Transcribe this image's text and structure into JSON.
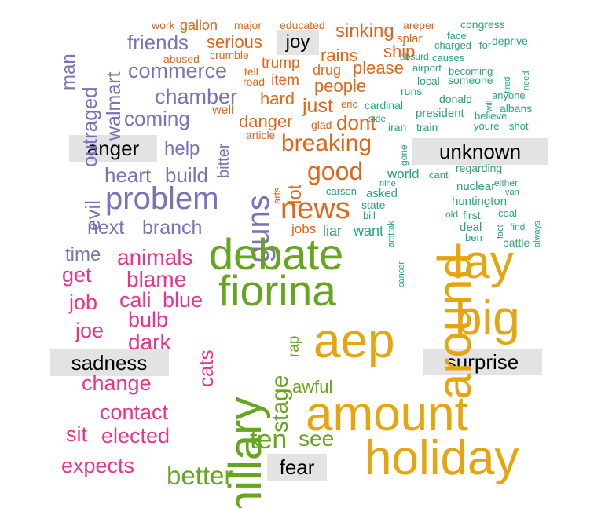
{
  "chart_data": {
    "type": "comparison-wordcloud",
    "groups": [
      {
        "name": "joy",
        "color": "#e0661a"
      },
      {
        "name": "anger",
        "color": "#7b72b8"
      },
      {
        "name": "unknown",
        "color": "#2aa57a"
      },
      {
        "name": "sadness",
        "color": "#e8358b"
      },
      {
        "name": "fear",
        "color": "#66a61e"
      },
      {
        "name": "surprise",
        "color": "#e6a50c"
      }
    ],
    "words": [
      {
        "text": "joy",
        "group": "joy"
      },
      {
        "text": "work",
        "group": "joy"
      },
      {
        "text": "gallon",
        "group": "joy"
      },
      {
        "text": "major",
        "group": "joy"
      },
      {
        "text": "educated",
        "group": "joy"
      },
      {
        "text": "sinking",
        "group": "joy"
      },
      {
        "text": "serious",
        "group": "joy"
      },
      {
        "text": "abused",
        "group": "joy"
      },
      {
        "text": "crumble",
        "group": "joy"
      },
      {
        "text": "trump",
        "group": "joy"
      },
      {
        "text": "tell",
        "group": "joy"
      },
      {
        "text": "road",
        "group": "joy"
      },
      {
        "text": "item",
        "group": "joy"
      },
      {
        "text": "drug",
        "group": "joy"
      },
      {
        "text": "rains",
        "group": "joy"
      },
      {
        "text": "please",
        "group": "joy"
      },
      {
        "text": "ship",
        "group": "joy"
      },
      {
        "text": "splar",
        "group": "joy"
      },
      {
        "text": "areper",
        "group": "joy"
      },
      {
        "text": "people",
        "group": "joy"
      },
      {
        "text": "hard",
        "group": "joy"
      },
      {
        "text": "just",
        "group": "joy"
      },
      {
        "text": "eric",
        "group": "joy"
      },
      {
        "text": "well",
        "group": "joy"
      },
      {
        "text": "danger",
        "group": "joy"
      },
      {
        "text": "glad",
        "group": "joy"
      },
      {
        "text": "dont",
        "group": "joy"
      },
      {
        "text": "article",
        "group": "joy"
      },
      {
        "text": "breaking",
        "group": "joy"
      },
      {
        "text": "good",
        "group": "joy"
      },
      {
        "text": "arts",
        "group": "joy"
      },
      {
        "text": "lot",
        "group": "joy"
      },
      {
        "text": "news",
        "group": "joy"
      },
      {
        "text": "jobs",
        "group": "joy"
      },
      {
        "text": "anger",
        "group": "anger"
      },
      {
        "text": "man",
        "group": "anger"
      },
      {
        "text": "outraged",
        "group": "anger"
      },
      {
        "text": "walmart",
        "group": "anger"
      },
      {
        "text": "friends",
        "group": "anger"
      },
      {
        "text": "commerce",
        "group": "anger"
      },
      {
        "text": "chamber",
        "group": "anger"
      },
      {
        "text": "coming",
        "group": "anger"
      },
      {
        "text": "bitter",
        "group": "anger"
      },
      {
        "text": "help",
        "group": "anger"
      },
      {
        "text": "heart",
        "group": "anger"
      },
      {
        "text": "build",
        "group": "anger"
      },
      {
        "text": "evil",
        "group": "anger"
      },
      {
        "text": "problem",
        "group": "anger"
      },
      {
        "text": "guns",
        "group": "anger"
      },
      {
        "text": "next",
        "group": "anger"
      },
      {
        "text": "branch",
        "group": "anger"
      },
      {
        "text": "unknown",
        "group": "unknown"
      },
      {
        "text": "congress",
        "group": "unknown"
      },
      {
        "text": "face",
        "group": "unknown"
      },
      {
        "text": "charged",
        "group": "unknown"
      },
      {
        "text": "for",
        "group": "unknown"
      },
      {
        "text": "deprive",
        "group": "unknown"
      },
      {
        "text": "absurd",
        "group": "unknown"
      },
      {
        "text": "causes",
        "group": "unknown"
      },
      {
        "text": "airport",
        "group": "unknown"
      },
      {
        "text": "becoming",
        "group": "unknown"
      },
      {
        "text": "fired",
        "group": "unknown"
      },
      {
        "text": "need",
        "group": "unknown"
      },
      {
        "text": "local",
        "group": "unknown"
      },
      {
        "text": "someone",
        "group": "unknown"
      },
      {
        "text": "runs",
        "group": "unknown"
      },
      {
        "text": "donald",
        "group": "unknown"
      },
      {
        "text": "will",
        "group": "unknown"
      },
      {
        "text": "anyone",
        "group": "unknown"
      },
      {
        "text": "cardinal",
        "group": "unknown"
      },
      {
        "text": "albans",
        "group": "unknown"
      },
      {
        "text": "side",
        "group": "unknown"
      },
      {
        "text": "president",
        "group": "unknown"
      },
      {
        "text": "believe",
        "group": "unknown"
      },
      {
        "text": "iran",
        "group": "unknown"
      },
      {
        "text": "train",
        "group": "unknown"
      },
      {
        "text": "youre",
        "group": "unknown"
      },
      {
        "text": "shot",
        "group": "unknown"
      },
      {
        "text": "gone",
        "group": "unknown"
      },
      {
        "text": "world",
        "group": "unknown"
      },
      {
        "text": "cant",
        "group": "unknown"
      },
      {
        "text": "regarding",
        "group": "unknown"
      },
      {
        "text": "nine",
        "group": "unknown"
      },
      {
        "text": "nuclear",
        "group": "unknown"
      },
      {
        "text": "either",
        "group": "unknown"
      },
      {
        "text": "carson",
        "group": "unknown"
      },
      {
        "text": "asked",
        "group": "unknown"
      },
      {
        "text": "van",
        "group": "unknown"
      },
      {
        "text": "state",
        "group": "unknown"
      },
      {
        "text": "huntington",
        "group": "unknown"
      },
      {
        "text": "bill",
        "group": "unknown"
      },
      {
        "text": "old",
        "group": "unknown"
      },
      {
        "text": "first",
        "group": "unknown"
      },
      {
        "text": "coal",
        "group": "unknown"
      },
      {
        "text": "always",
        "group": "unknown"
      },
      {
        "text": "liar",
        "group": "unknown"
      },
      {
        "text": "want",
        "group": "unknown"
      },
      {
        "text": "amtrak",
        "group": "unknown"
      },
      {
        "text": "deal",
        "group": "unknown"
      },
      {
        "text": "fact",
        "group": "unknown"
      },
      {
        "text": "find",
        "group": "unknown"
      },
      {
        "text": "ben",
        "group": "unknown"
      },
      {
        "text": "battle",
        "group": "unknown"
      },
      {
        "text": "cancer",
        "group": "unknown"
      },
      {
        "text": "sadness",
        "group": "sadness"
      },
      {
        "text": "time",
        "group": "anger"
      },
      {
        "text": "animals",
        "group": "sadness"
      },
      {
        "text": "get",
        "group": "sadness"
      },
      {
        "text": "blame",
        "group": "sadness"
      },
      {
        "text": "job",
        "group": "sadness"
      },
      {
        "text": "cali",
        "group": "sadness"
      },
      {
        "text": "blue",
        "group": "sadness"
      },
      {
        "text": "bulb",
        "group": "sadness"
      },
      {
        "text": "joe",
        "group": "sadness"
      },
      {
        "text": "dark",
        "group": "sadness"
      },
      {
        "text": "cats",
        "group": "sadness"
      },
      {
        "text": "change",
        "group": "sadness"
      },
      {
        "text": "contact",
        "group": "sadness"
      },
      {
        "text": "sit",
        "group": "sadness"
      },
      {
        "text": "elected",
        "group": "sadness"
      },
      {
        "text": "expects",
        "group": "sadness"
      },
      {
        "text": "fear",
        "group": "fear"
      },
      {
        "text": "debate",
        "group": "fear"
      },
      {
        "text": "fiorina",
        "group": "fear"
      },
      {
        "text": "hillary",
        "group": "fear"
      },
      {
        "text": "rap",
        "group": "fear"
      },
      {
        "text": "stage",
        "group": "fear"
      },
      {
        "text": "awful",
        "group": "fear"
      },
      {
        "text": "ten",
        "group": "fear"
      },
      {
        "text": "see",
        "group": "fear"
      },
      {
        "text": "better",
        "group": "fear"
      },
      {
        "text": "surprise",
        "group": "surprise"
      },
      {
        "text": "around",
        "group": "surprise"
      },
      {
        "text": "lay",
        "group": "surprise"
      },
      {
        "text": "big",
        "group": "surprise"
      },
      {
        "text": "aep",
        "group": "surprise"
      },
      {
        "text": "amount",
        "group": "surprise"
      },
      {
        "text": "holiday",
        "group": "surprise"
      }
    ]
  }
}
